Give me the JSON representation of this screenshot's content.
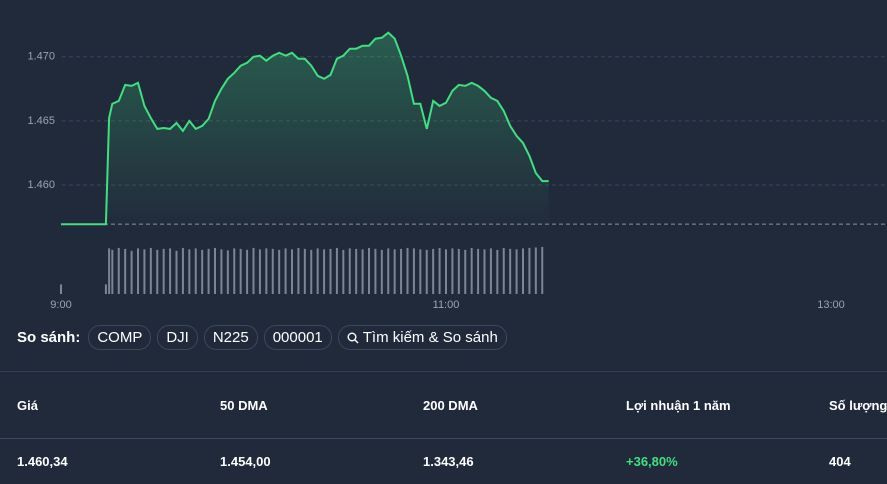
{
  "chart_data": {
    "type": "line",
    "x": [
      "9:00",
      "9:14",
      "9:15",
      "9:16",
      "9:18",
      "9:20",
      "9:22",
      "9:24",
      "9:26",
      "9:28",
      "9:30",
      "9:32",
      "9:34",
      "9:36",
      "9:38",
      "9:40",
      "9:42",
      "9:44",
      "9:46",
      "9:48",
      "9:50",
      "9:52",
      "9:54",
      "9:56",
      "9:58",
      "10:00",
      "10:02",
      "10:04",
      "10:06",
      "10:08",
      "10:10",
      "10:12",
      "10:14",
      "10:16",
      "10:18",
      "10:20",
      "10:22",
      "10:24",
      "10:26",
      "10:28",
      "10:30",
      "10:32",
      "10:34",
      "10:36",
      "10:38",
      "10:40",
      "10:42",
      "10:44",
      "10:46",
      "10:48",
      "10:50",
      "10:52",
      "10:54",
      "10:56",
      "10:58",
      "11:00",
      "11:02",
      "11:04",
      "11:06",
      "11:08",
      "11:10",
      "11:12",
      "11:14",
      "11:16",
      "11:18",
      "11:20",
      "11:22",
      "11:24",
      "11:26",
      "11:28",
      "11:30",
      "11:32"
    ],
    "series": [
      {
        "name": "Giá",
        "color": "#3ee07f",
        "values": [
          1456.95,
          1456.95,
          1465.23,
          1466.33,
          1466.56,
          1467.81,
          1467.73,
          1467.97,
          1466.17,
          1465.23,
          1464.38,
          1464.45,
          1464.38,
          1464.84,
          1464.22,
          1465.0,
          1464.38,
          1464.61,
          1465.16,
          1466.56,
          1467.5,
          1468.28,
          1468.75,
          1469.3,
          1469.53,
          1470.0,
          1470.08,
          1469.69,
          1470.08,
          1470.31,
          1470.08,
          1470.31,
          1469.84,
          1469.84,
          1469.3,
          1468.52,
          1468.28,
          1468.59,
          1469.84,
          1470.08,
          1470.63,
          1470.63,
          1470.86,
          1470.86,
          1471.41,
          1471.48,
          1471.88,
          1471.41,
          1470.08,
          1468.52,
          1466.33,
          1466.33,
          1464.38,
          1466.56,
          1466.17,
          1466.41,
          1467.34,
          1467.81,
          1467.73,
          1467.97,
          1467.73,
          1467.34,
          1466.8,
          1466.56,
          1465.78,
          1464.61,
          1463.83,
          1463.28,
          1462.27,
          1460.94,
          1460.31,
          1460.31
        ]
      },
      {
        "name": "Số lượng",
        "color": "#7c8594",
        "axis": "y2",
        "values": [
          20,
          20,
          95,
          92,
          96,
          94,
          90,
          95,
          93,
          96,
          92,
          94,
          95,
          90,
          96,
          93,
          95,
          92,
          94,
          96,
          93,
          91,
          95,
          94,
          92,
          96,
          93,
          95,
          94,
          92,
          95,
          93,
          96,
          94,
          92,
          95,
          93,
          94,
          96,
          92,
          95,
          94,
          93,
          96,
          94,
          92,
          95,
          93,
          94,
          96,
          95,
          93,
          92,
          94,
          96,
          93,
          95,
          94,
          92,
          96,
          94,
          93,
          95,
          92,
          96,
          94,
          93,
          95,
          96,
          97,
          98,
          null
        ]
      }
    ],
    "xlim": [
      "9:00",
      "13:00"
    ],
    "xticks": [
      "9:00",
      "11:00",
      "13:00"
    ],
    "ylim": [
      1453.3,
      1473.1
    ],
    "yticks": [
      {
        "value": 1460,
        "label": "1.460"
      },
      {
        "value": 1465,
        "label": "1.465"
      },
      {
        "value": 1470,
        "label": "1.470"
      }
    ],
    "y2lim": [
      0,
      100
    ],
    "reference_line": 1456.95,
    "grid": true
  },
  "compare": {
    "label": "So sánh:",
    "chips": [
      "COMP",
      "DJI",
      "N225",
      "000001"
    ],
    "search": "Tìm kiếm & So sánh"
  },
  "table": {
    "headers": [
      "Giá",
      "50 DMA",
      "200 DMA",
      "Lợi nhuận 1 năm",
      "Số lượng"
    ],
    "rows": [
      [
        "1.460,34",
        "1.454,00",
        "1.343,46",
        "+36,80%",
        "404"
      ]
    ]
  }
}
